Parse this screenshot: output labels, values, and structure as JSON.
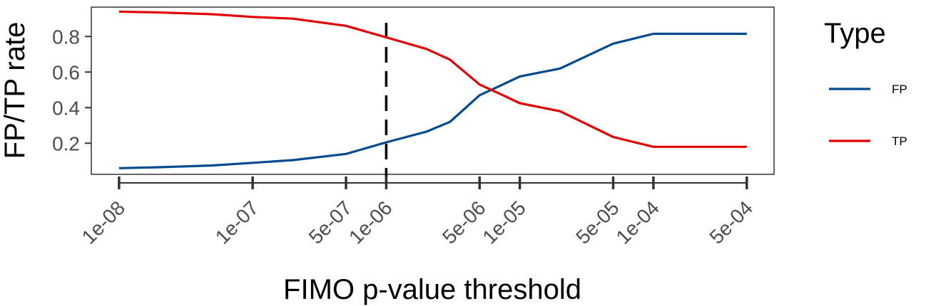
{
  "chart_data": {
    "type": "line",
    "xlabel": "FIMO p-value threshold",
    "ylabel": "FP/TP rate",
    "x_scale": "log",
    "xlim": [
      6.2e-09,
      0.0008
    ],
    "ylim": [
      0.025,
      0.965
    ],
    "x_ticks": [
      {
        "value": 1e-08,
        "label": "1e-08"
      },
      {
        "value": 1e-07,
        "label": "1e-07"
      },
      {
        "value": 5e-07,
        "label": "5e-07"
      },
      {
        "value": 1e-06,
        "label": "1e-06"
      },
      {
        "value": 5e-06,
        "label": "5e-06"
      },
      {
        "value": 1e-05,
        "label": "1e-05"
      },
      {
        "value": 5e-05,
        "label": "5e-05"
      },
      {
        "value": 0.0001,
        "label": "1e-04"
      },
      {
        "value": 0.0005,
        "label": "5e-04"
      }
    ],
    "y_ticks": [
      {
        "value": 0.2,
        "label": "0.2"
      },
      {
        "value": 0.4,
        "label": "0.4"
      },
      {
        "value": 0.6,
        "label": "0.6"
      },
      {
        "value": 0.8,
        "label": "0.8"
      }
    ],
    "vline": 1e-06,
    "grid": false,
    "legend": {
      "title": "Type",
      "position": "right"
    },
    "series": [
      {
        "name": "FP",
        "color": "#004a8f",
        "x": [
          1e-08,
          2e-08,
          5e-08,
          1e-07,
          2e-07,
          5e-07,
          1e-06,
          2e-06,
          3e-06,
          5e-06,
          7e-06,
          1e-05,
          2e-05,
          5e-05,
          0.0001,
          0.0002,
          0.0005
        ],
        "y": [
          0.06,
          0.065,
          0.075,
          0.09,
          0.105,
          0.14,
          0.205,
          0.265,
          0.32,
          0.47,
          0.52,
          0.575,
          0.62,
          0.76,
          0.815,
          0.815,
          0.815
        ]
      },
      {
        "name": "TP",
        "color": "#e00000",
        "x": [
          1e-08,
          2e-08,
          5e-08,
          1e-07,
          2e-07,
          5e-07,
          1e-06,
          2e-06,
          3e-06,
          5e-06,
          7e-06,
          1e-05,
          2e-05,
          5e-05,
          0.0001,
          0.0002,
          0.0005
        ],
        "y": [
          0.94,
          0.935,
          0.925,
          0.91,
          0.9,
          0.86,
          0.795,
          0.73,
          0.67,
          0.53,
          0.48,
          0.425,
          0.38,
          0.235,
          0.18,
          0.18,
          0.18
        ]
      }
    ]
  }
}
